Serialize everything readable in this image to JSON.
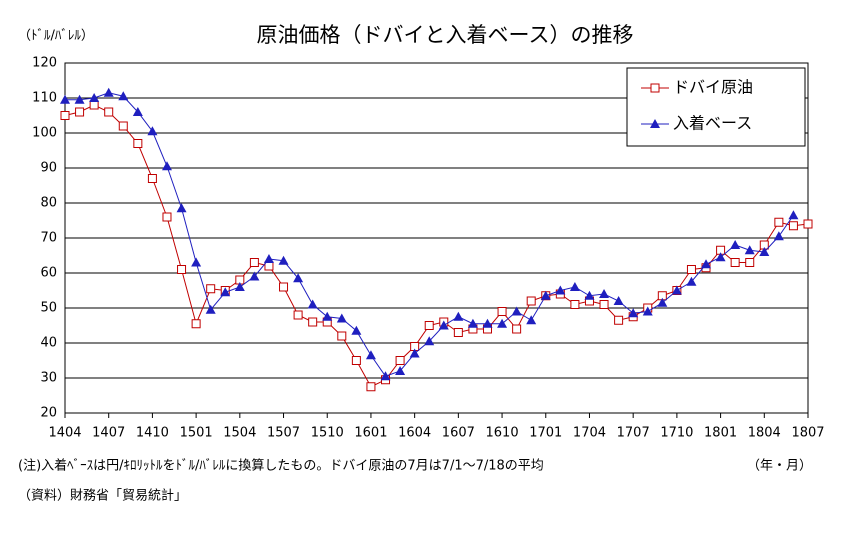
{
  "chart_data": {
    "type": "line",
    "title": "原油価格（ドバイと入着ベース）の推移",
    "y_label": "（ﾄﾞﾙ/ﾊﾞﾚﾙ）",
    "x_label": "（年・月）",
    "notes": [
      "(注)入着ﾍﾞｰｽは円/ｷﾛﾘｯﾄﾙをﾄﾞﾙ/ﾊﾞﾚﾙに換算したもの。ドバイ原油の7月は7/1～7/18の平均",
      "（資料）財務省「貿易統計」"
    ],
    "categories": [
      "1404",
      null,
      null,
      "1407",
      null,
      null,
      "1410",
      null,
      null,
      "1501",
      null,
      null,
      "1504",
      null,
      null,
      "1507",
      null,
      null,
      "1510",
      null,
      null,
      "1601",
      null,
      null,
      "1604",
      null,
      null,
      "1607",
      null,
      null,
      "1610",
      null,
      null,
      "1701",
      null,
      null,
      "1704",
      null,
      null,
      "1707",
      null,
      null,
      "1710",
      null,
      null,
      "1801",
      null,
      null,
      "1804",
      null,
      null,
      "1807"
    ],
    "series": [
      {
        "name": "ドバイ原油",
        "color": "#c00000",
        "marker": "square",
        "values": [
          105,
          106,
          108,
          106,
          102,
          97,
          87,
          76,
          61,
          45.5,
          55.5,
          55,
          58,
          63,
          62,
          56,
          48,
          46,
          46,
          42,
          35,
          27.5,
          29.5,
          35,
          39,
          45,
          46,
          43,
          44,
          44,
          49,
          44,
          52,
          53.5,
          54,
          51,
          52,
          51,
          46.5,
          47.5,
          50,
          53.5,
          55,
          61,
          61.5,
          66.5,
          63,
          63,
          68,
          74.5,
          73.5,
          74
        ]
      },
      {
        "name": "入着ベース",
        "color": "#1f1fbf",
        "marker": "triangle",
        "values": [
          109.5,
          109.5,
          110,
          111.5,
          110.5,
          106,
          100.5,
          90.5,
          78.5,
          63,
          49.5,
          54.5,
          56,
          59,
          64,
          63.5,
          58.5,
          51,
          47.5,
          47,
          43.5,
          36.5,
          30.5,
          32,
          37,
          40.5,
          45,
          47.5,
          45.5,
          45.5,
          45.5,
          49,
          46.5,
          53.5,
          55,
          56,
          53.5,
          54,
          52,
          48.5,
          49,
          51.5,
          55,
          57.5,
          62.5,
          64.5,
          68,
          66.5,
          66,
          70.5,
          76.5,
          null
        ]
      }
    ],
    "ylim": [
      20,
      120
    ],
    "yticks": [
      20,
      30,
      40,
      50,
      60,
      70,
      80,
      90,
      100,
      110,
      120
    ],
    "grid": true,
    "legend": "top-right"
  }
}
